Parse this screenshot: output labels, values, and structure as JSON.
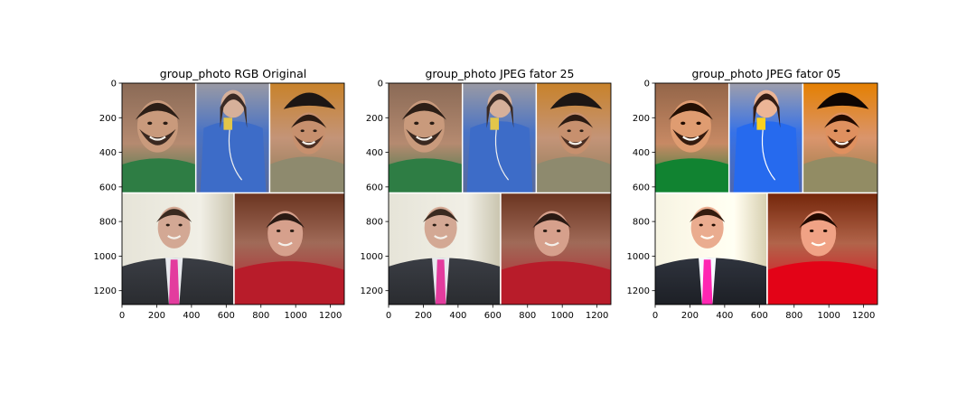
{
  "chart_data": [
    {
      "type": "image",
      "title": "group_photo RGB Original",
      "xlim": [
        0,
        1280
      ],
      "ylim": [
        1280,
        0
      ],
      "xticks": [
        0,
        200,
        400,
        600,
        800,
        1000,
        1200
      ],
      "yticks": [
        0,
        200,
        400,
        600,
        800,
        1000,
        1200
      ],
      "xtick_labels": [
        "0",
        "200",
        "400",
        "600",
        "800",
        "1000",
        "1200"
      ],
      "ytick_labels": [
        "0",
        "200",
        "400",
        "600",
        "800",
        "1000",
        "1200"
      ]
    },
    {
      "type": "image",
      "title": "group_photo JPEG fator 25",
      "xlim": [
        0,
        1280
      ],
      "ylim": [
        1280,
        0
      ],
      "xticks": [
        0,
        200,
        400,
        600,
        800,
        1000,
        1200
      ],
      "yticks": [
        0,
        200,
        400,
        600,
        800,
        1000,
        1200
      ],
      "xtick_labels": [
        "0",
        "200",
        "400",
        "600",
        "800",
        "1000",
        "1200"
      ],
      "ytick_labels": [
        "0",
        "200",
        "400",
        "600",
        "800",
        "1000",
        "1200"
      ]
    },
    {
      "type": "image",
      "title": "group_photo JPEG fator 05",
      "xlim": [
        0,
        1280
      ],
      "ylim": [
        1280,
        0
      ],
      "xticks": [
        0,
        200,
        400,
        600,
        800,
        1000,
        1200
      ],
      "yticks": [
        0,
        200,
        400,
        600,
        800,
        1000,
        1200
      ],
      "xtick_labels": [
        "0",
        "200",
        "400",
        "600",
        "800",
        "1000",
        "1200"
      ],
      "ytick_labels": [
        "0",
        "200",
        "400",
        "600",
        "800",
        "1000",
        "1200"
      ]
    }
  ]
}
